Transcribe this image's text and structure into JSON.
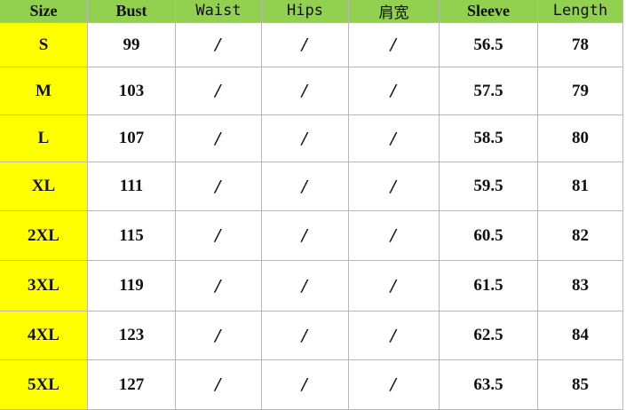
{
  "headers": [
    "Size",
    "Bust",
    "Waist",
    "Hips",
    "肩宽",
    "Sleeve",
    "Length"
  ],
  "rows": [
    [
      "S",
      "99",
      "/",
      "/",
      "/",
      "56.5",
      "78"
    ],
    [
      "M",
      "103",
      "/",
      "/",
      "/",
      "57.5",
      "79"
    ],
    [
      "L",
      "107",
      "/",
      "/",
      "/",
      "58.5",
      "80"
    ],
    [
      "XL",
      "111",
      "/",
      "/",
      "/",
      "59.5",
      "81"
    ],
    [
      "2XL",
      "115",
      "/",
      "/",
      "/",
      "60.5",
      "82"
    ],
    [
      "3XL",
      "119",
      "/",
      "/",
      "/",
      "61.5",
      "83"
    ],
    [
      "4XL",
      "123",
      "/",
      "/",
      "/",
      "62.5",
      "84"
    ],
    [
      "5XL",
      "127",
      "/",
      "/",
      "/",
      "63.5",
      "85"
    ]
  ],
  "colors": {
    "header_bg": "#92d050",
    "size_bg": "#ffff00"
  }
}
